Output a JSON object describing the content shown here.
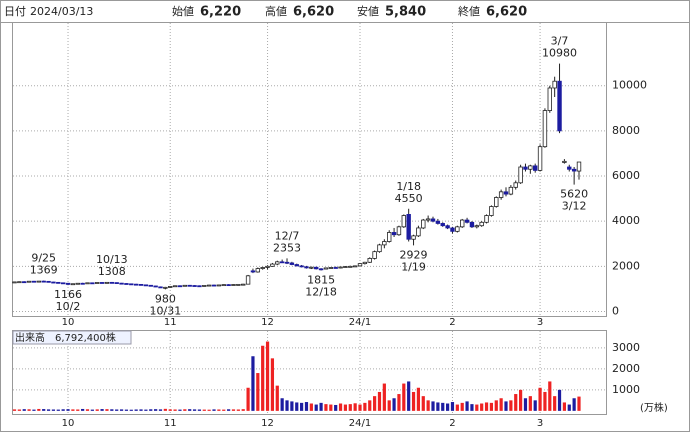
{
  "header": {
    "date_label": "日付",
    "date": "2024/03/13",
    "items": [
      {
        "label": "始値",
        "value": "6,220",
        "color": "#000000"
      },
      {
        "label": "高値",
        "value": "6,620",
        "color": "#e0201a"
      },
      {
        "label": "安値",
        "value": "5,840",
        "color": "#1e8a1e"
      },
      {
        "label": "終値",
        "value": "6,620",
        "color": "#000000"
      }
    ]
  },
  "chart_data": [
    {
      "type": "candlestick",
      "up_color": "#ffffff",
      "down_color": "#1c1ca0",
      "edge_color": "#222222",
      "categories": [
        null,
        null,
        null,
        null,
        null,
        null,
        null,
        null,
        null,
        null,
        null,
        "10",
        null,
        null,
        null,
        null,
        null,
        null,
        null,
        null,
        null,
        null,
        null,
        null,
        null,
        null,
        null,
        null,
        null,
        null,
        null,
        null,
        "11",
        null,
        null,
        null,
        null,
        null,
        null,
        null,
        null,
        null,
        null,
        null,
        null,
        null,
        null,
        null,
        null,
        null,
        null,
        null,
        "12",
        null,
        null,
        null,
        null,
        null,
        null,
        null,
        null,
        null,
        null,
        null,
        null,
        null,
        null,
        null,
        null,
        null,
        null,
        "24/1",
        null,
        null,
        null,
        null,
        null,
        null,
        null,
        null,
        null,
        null,
        null,
        null,
        null,
        null,
        null,
        null,
        null,
        null,
        "2",
        null,
        null,
        null,
        null,
        null,
        null,
        null,
        null,
        null,
        null,
        null,
        null,
        null,
        null,
        null,
        null,
        null,
        "3",
        null,
        null,
        null,
        null,
        null,
        null,
        null,
        null
      ],
      "ohlc": [
        [
          1300,
          1320,
          1290,
          1310
        ],
        [
          1310,
          1330,
          1300,
          1320
        ],
        [
          1320,
          1340,
          1305,
          1315
        ],
        [
          1315,
          1345,
          1310,
          1340
        ],
        [
          1340,
          1355,
          1320,
          1330
        ],
        [
          1330,
          1350,
          1315,
          1345
        ],
        [
          1345,
          1369,
          1330,
          1335
        ],
        [
          1335,
          1340,
          1300,
          1305
        ],
        [
          1305,
          1315,
          1280,
          1290
        ],
        [
          1290,
          1300,
          1260,
          1270
        ],
        [
          1270,
          1285,
          1240,
          1250
        ],
        [
          1250,
          1255,
          1166,
          1200
        ],
        [
          1200,
          1240,
          1190,
          1230
        ],
        [
          1230,
          1260,
          1220,
          1250
        ],
        [
          1250,
          1270,
          1235,
          1245
        ],
        [
          1245,
          1280,
          1240,
          1270
        ],
        [
          1270,
          1285,
          1255,
          1260
        ],
        [
          1260,
          1290,
          1250,
          1285
        ],
        [
          1285,
          1295,
          1265,
          1275
        ],
        [
          1275,
          1300,
          1270,
          1290
        ],
        [
          1290,
          1308,
          1270,
          1280
        ],
        [
          1280,
          1285,
          1250,
          1255
        ],
        [
          1255,
          1265,
          1230,
          1240
        ],
        [
          1240,
          1250,
          1215,
          1225
        ],
        [
          1225,
          1235,
          1200,
          1210
        ],
        [
          1210,
          1225,
          1190,
          1200
        ],
        [
          1200,
          1210,
          1170,
          1180
        ],
        [
          1180,
          1195,
          1150,
          1160
        ],
        [
          1160,
          1170,
          1120,
          1130
        ],
        [
          1130,
          1140,
          1080,
          1090
        ],
        [
          1090,
          1110,
          1040,
          1060
        ],
        [
          1060,
          1090,
          980,
          1070
        ],
        [
          1070,
          1120,
          1060,
          1110
        ],
        [
          1110,
          1150,
          1100,
          1140
        ],
        [
          1140,
          1160,
          1120,
          1130
        ],
        [
          1130,
          1170,
          1125,
          1160
        ],
        [
          1160,
          1175,
          1140,
          1150
        ],
        [
          1150,
          1165,
          1130,
          1140
        ],
        [
          1140,
          1155,
          1120,
          1135
        ],
        [
          1135,
          1160,
          1130,
          1155
        ],
        [
          1155,
          1180,
          1145,
          1170
        ],
        [
          1170,
          1190,
          1155,
          1165
        ],
        [
          1165,
          1185,
          1150,
          1175
        ],
        [
          1175,
          1200,
          1165,
          1190
        ],
        [
          1190,
          1210,
          1175,
          1185
        ],
        [
          1185,
          1205,
          1170,
          1195
        ],
        [
          1195,
          1215,
          1180,
          1200
        ],
        [
          1200,
          1225,
          1190,
          1210
        ],
        [
          1210,
          1620,
          1200,
          1580
        ],
        [
          1800,
          1900,
          1700,
          1750
        ],
        [
          1750,
          1950,
          1720,
          1900
        ],
        [
          1900,
          1980,
          1850,
          1950
        ],
        [
          1950,
          2050,
          1860,
          2000
        ],
        [
          2000,
          2150,
          1980,
          2100
        ],
        [
          2100,
          2250,
          2050,
          2200
        ],
        [
          2200,
          2300,
          2150,
          2180
        ],
        [
          2180,
          2353,
          2100,
          2150
        ],
        [
          2150,
          2200,
          2050,
          2080
        ],
        [
          2080,
          2120,
          2000,
          2020
        ],
        [
          2020,
          2060,
          1950,
          1980
        ],
        [
          1980,
          2020,
          1900,
          1930
        ],
        [
          1930,
          1990,
          1880,
          1960
        ],
        [
          1960,
          1980,
          1860,
          1890
        ],
        [
          1890,
          1920,
          1815,
          1880
        ],
        [
          1880,
          1950,
          1860,
          1930
        ],
        [
          1930,
          1970,
          1900,
          1950
        ],
        [
          1950,
          1990,
          1920,
          1940
        ],
        [
          1940,
          1985,
          1910,
          1970
        ],
        [
          1970,
          2010,
          1940,
          1990
        ],
        [
          1990,
          2030,
          1960,
          2000
        ],
        [
          2000,
          2040,
          1970,
          2020
        ],
        [
          2020,
          2150,
          2000,
          2120
        ],
        [
          2120,
          2200,
          2080,
          2180
        ],
        [
          2180,
          2400,
          2150,
          2350
        ],
        [
          2350,
          2700,
          2300,
          2650
        ],
        [
          2650,
          3000,
          2600,
          2950
        ],
        [
          2950,
          3200,
          2800,
          3100
        ],
        [
          3100,
          3600,
          3050,
          3500
        ],
        [
          3500,
          3700,
          3300,
          3400
        ],
        [
          3400,
          3800,
          3350,
          3750
        ],
        [
          3750,
          4300,
          3700,
          4250
        ],
        [
          4300,
          4550,
          3100,
          3200
        ],
        [
          3200,
          3400,
          2929,
          3350
        ],
        [
          3350,
          3800,
          3300,
          3700
        ],
        [
          3700,
          4100,
          3650,
          4050
        ],
        [
          4050,
          4250,
          3950,
          4100
        ],
        [
          4100,
          4200,
          3950,
          4000
        ],
        [
          4000,
          4100,
          3850,
          3900
        ],
        [
          3900,
          3950,
          3750,
          3800
        ],
        [
          3800,
          3850,
          3650,
          3700
        ],
        [
          3700,
          3750,
          3450,
          3550
        ],
        [
          3550,
          3800,
          3500,
          3750
        ],
        [
          3750,
          4100,
          3700,
          4050
        ],
        [
          4050,
          4150,
          3900,
          3950
        ],
        [
          3950,
          4000,
          3700,
          3750
        ],
        [
          3750,
          3850,
          3680,
          3800
        ],
        [
          3800,
          4000,
          3750,
          3950
        ],
        [
          3950,
          4300,
          3900,
          4250
        ],
        [
          4250,
          4700,
          4200,
          4650
        ],
        [
          4650,
          5100,
          4600,
          5050
        ],
        [
          5050,
          5400,
          4950,
          5300
        ],
        [
          5300,
          5500,
          5100,
          5200
        ],
        [
          5200,
          5600,
          5150,
          5500
        ],
        [
          5500,
          5800,
          5400,
          5700
        ],
        [
          5700,
          6500,
          5650,
          6400
        ],
        [
          6400,
          6550,
          6200,
          6300
        ],
        [
          6300,
          6500,
          6100,
          6450
        ],
        [
          6450,
          6550,
          6150,
          6250
        ],
        [
          6250,
          7400,
          6200,
          7300
        ],
        [
          7300,
          9000,
          7250,
          8900
        ],
        [
          8900,
          10000,
          8800,
          9900
        ],
        [
          9900,
          10400,
          9500,
          10200
        ],
        [
          10200,
          10980,
          7900,
          8000
        ],
        [
          6600,
          6750,
          6550,
          6650
        ],
        [
          6400,
          6500,
          6200,
          6300
        ],
        [
          6300,
          6400,
          5620,
          6220
        ],
        [
          6220,
          6620,
          5840,
          6620
        ]
      ],
      "annotations": [
        {
          "date": "9/25",
          "value": 1369
        },
        {
          "date": "10/2",
          "value": 1166
        },
        {
          "date": "10/13",
          "value": 1308
        },
        {
          "date": "10/31",
          "value": 980
        },
        {
          "date": "12/7",
          "value": 2353
        },
        {
          "date": "12/18",
          "value": 1815
        },
        {
          "date": "1/18",
          "value": 4550
        },
        {
          "date": "1/19",
          "value": 2929
        },
        {
          "date": "3/7",
          "value": 10980
        },
        {
          "date": "3/12",
          "value": 5620
        }
      ],
      "ylim": [
        -200,
        13000
      ],
      "yticks": [
        0,
        2000,
        4000,
        6000,
        8000,
        10000
      ],
      "grid": true
    },
    {
      "type": "bar",
      "title": "出来高　6,792,400株",
      "unit": "(万株)",
      "up_color": "#ee2222",
      "down_color": "#1c1ca0",
      "values": [
        70,
        65,
        80,
        75,
        60,
        90,
        85,
        70,
        65,
        60,
        75,
        80,
        70,
        65,
        90,
        75,
        60,
        70,
        85,
        80,
        75,
        65,
        70,
        60,
        55,
        65,
        70,
        60,
        75,
        80,
        70,
        95,
        70,
        65,
        60,
        75,
        80,
        70,
        65,
        60,
        55,
        70,
        65,
        60,
        75,
        70,
        65,
        80,
        1100,
        2600,
        1800,
        3100,
        3300,
        2500,
        1200,
        600,
        500,
        450,
        400,
        380,
        420,
        350,
        300,
        380,
        320,
        300,
        280,
        350,
        300,
        320,
        360,
        300,
        380,
        500,
        700,
        900,
        1300,
        500,
        600,
        800,
        1300,
        1400,
        900,
        1100,
        700,
        500,
        450,
        400,
        380,
        350,
        420,
        300,
        380,
        450,
        320,
        300,
        350,
        400,
        380,
        500,
        600,
        450,
        500,
        800,
        1000,
        600,
        700,
        500,
        1100,
        900,
        1400,
        700,
        1000,
        400,
        300,
        600,
        679.24
      ],
      "ylim": [
        -150,
        3850
      ],
      "yticks": [
        1000,
        2000,
        3000
      ],
      "grid": true
    }
  ]
}
